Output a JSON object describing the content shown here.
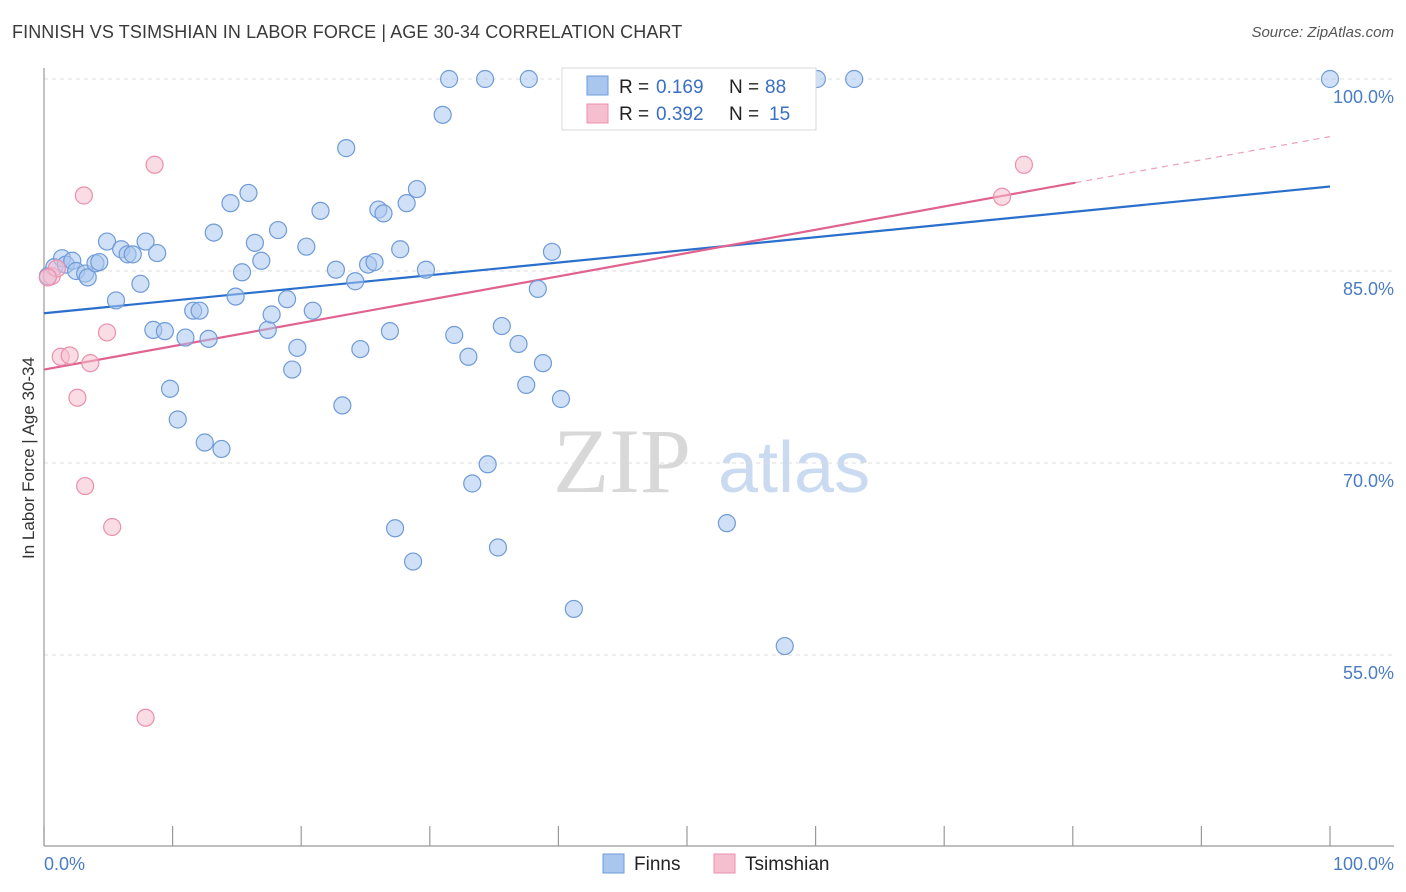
{
  "title": "FINNISH VS TSIMSHIAN IN LABOR FORCE | AGE 30-34 CORRELATION CHART",
  "source": "Source: ZipAtlas.com",
  "watermark": {
    "zip": "ZIP",
    "atlas": "atlas"
  },
  "legend": {
    "finns": {
      "r_label": "R =",
      "r_value": "0.169",
      "n_label": "N =",
      "n_value": "88"
    },
    "tsimshian": {
      "r_label": "R =",
      "r_value": "0.392",
      "n_label": "N =",
      "n_value": "15"
    }
  },
  "colors": {
    "finns_fill": "#a9c6ee",
    "finns_stroke": "#6f9bd8",
    "finns_line": "#2a6fcc",
    "tsimshian_fill": "#f6bfd0",
    "tsimshian_stroke": "#ec8fad",
    "tsimshian_line": "#e0628f",
    "tick_text": "#4a7cc4",
    "grid": "#dcdcdc"
  },
  "chart_data": {
    "type": "scatter",
    "title": "FINNISH VS TSIMSHIAN IN LABOR FORCE | AGE 30-34 CORRELATION CHART",
    "xlabel": "",
    "ylabel": "In Labor Force | Age 30-34",
    "xlim": [
      0,
      100
    ],
    "ylim": [
      40,
      102
    ],
    "x_tick_labels": [
      "0.0%",
      "100.0%"
    ],
    "y_ticks": [
      55,
      70,
      85,
      100
    ],
    "y_tick_labels": [
      "55.0%",
      "70.0%",
      "85.0%",
      "100.0%"
    ],
    "grid": true,
    "legend_position": "top-center",
    "series": [
      {
        "name": "Finns",
        "r": 0.169,
        "n": 88,
        "trend": {
          "x": [
            0,
            100
          ],
          "y": [
            81.7,
            91.6
          ]
        },
        "points": [
          [
            0.3,
            84.6
          ],
          [
            0.8,
            85.3
          ],
          [
            1.4,
            86.0
          ],
          [
            1.7,
            85.5
          ],
          [
            2.2,
            85.8
          ],
          [
            2.5,
            85.0
          ],
          [
            3.2,
            84.8
          ],
          [
            3.4,
            84.5
          ],
          [
            4.0,
            85.6
          ],
          [
            4.3,
            85.7
          ],
          [
            4.9,
            87.3
          ],
          [
            5.6,
            82.7
          ],
          [
            6.0,
            86.7
          ],
          [
            6.5,
            86.3
          ],
          [
            6.9,
            86.3
          ],
          [
            7.5,
            84.0
          ],
          [
            7.9,
            87.3
          ],
          [
            8.5,
            80.4
          ],
          [
            8.8,
            86.4
          ],
          [
            9.4,
            80.3
          ],
          [
            9.8,
            75.8
          ],
          [
            10.4,
            73.4
          ],
          [
            11.0,
            79.8
          ],
          [
            11.6,
            81.9
          ],
          [
            12.1,
            81.9
          ],
          [
            12.5,
            71.6
          ],
          [
            12.8,
            79.7
          ],
          [
            13.2,
            88.0
          ],
          [
            13.8,
            71.1
          ],
          [
            14.5,
            90.3
          ],
          [
            14.9,
            83.0
          ],
          [
            15.4,
            84.9
          ],
          [
            15.9,
            91.1
          ],
          [
            16.4,
            87.2
          ],
          [
            16.9,
            85.8
          ],
          [
            17.4,
            80.4
          ],
          [
            17.7,
            81.6
          ],
          [
            18.2,
            88.2
          ],
          [
            18.9,
            82.8
          ],
          [
            19.3,
            77.3
          ],
          [
            19.7,
            79.0
          ],
          [
            20.4,
            86.9
          ],
          [
            20.9,
            81.9
          ],
          [
            21.5,
            89.7
          ],
          [
            22.7,
            85.1
          ],
          [
            23.2,
            74.5
          ],
          [
            23.5,
            94.6
          ],
          [
            24.2,
            84.2
          ],
          [
            24.6,
            78.9
          ],
          [
            25.2,
            85.5
          ],
          [
            25.7,
            85.7
          ],
          [
            26.0,
            89.8
          ],
          [
            26.4,
            89.5
          ],
          [
            26.9,
            80.3
          ],
          [
            27.3,
            64.9
          ],
          [
            27.7,
            86.7
          ],
          [
            28.2,
            90.3
          ],
          [
            28.7,
            62.3
          ],
          [
            29.0,
            91.4
          ],
          [
            29.7,
            85.1
          ],
          [
            31.0,
            97.2
          ],
          [
            31.5,
            100.0
          ],
          [
            31.9,
            80.0
          ],
          [
            33.0,
            78.3
          ],
          [
            33.3,
            68.4
          ],
          [
            34.3,
            100.0
          ],
          [
            34.5,
            69.9
          ],
          [
            35.3,
            63.4
          ],
          [
            35.6,
            80.7
          ],
          [
            36.9,
            79.3
          ],
          [
            37.5,
            76.1
          ],
          [
            37.7,
            100.0
          ],
          [
            38.4,
            83.6
          ],
          [
            38.8,
            77.8
          ],
          [
            39.5,
            86.5
          ],
          [
            40.2,
            75.0
          ],
          [
            41.2,
            58.6
          ],
          [
            44.0,
            100.0
          ],
          [
            46.4,
            100.0
          ],
          [
            47.5,
            100.0
          ],
          [
            50.2,
            100.0
          ],
          [
            51.0,
            100.0
          ],
          [
            53.1,
            65.3
          ],
          [
            56.2,
            100.0
          ],
          [
            57.6,
            55.7
          ],
          [
            60.1,
            100.0
          ],
          [
            63.0,
            100.0
          ],
          [
            100.0,
            100.0
          ]
        ]
      },
      {
        "name": "Tsimshian",
        "r": 0.392,
        "n": 15,
        "trend": {
          "x": [
            0,
            80.2
          ],
          "y": [
            77.3,
            91.9
          ]
        },
        "trend_dashed": {
          "x": [
            80.2,
            100
          ],
          "y": [
            91.9,
            95.5
          ]
        },
        "points": [
          [
            0.6,
            84.6
          ],
          [
            1.0,
            85.2
          ],
          [
            1.3,
            78.3
          ],
          [
            2.0,
            78.4
          ],
          [
            2.6,
            75.1
          ],
          [
            3.1,
            90.9
          ],
          [
            3.2,
            68.2
          ],
          [
            3.6,
            77.8
          ],
          [
            4.9,
            80.2
          ],
          [
            5.3,
            65.0
          ],
          [
            7.9,
            50.1
          ],
          [
            8.6,
            93.3
          ],
          [
            74.5,
            90.8
          ],
          [
            76.2,
            93.3
          ],
          [
            0.3,
            84.5
          ]
        ]
      }
    ]
  }
}
